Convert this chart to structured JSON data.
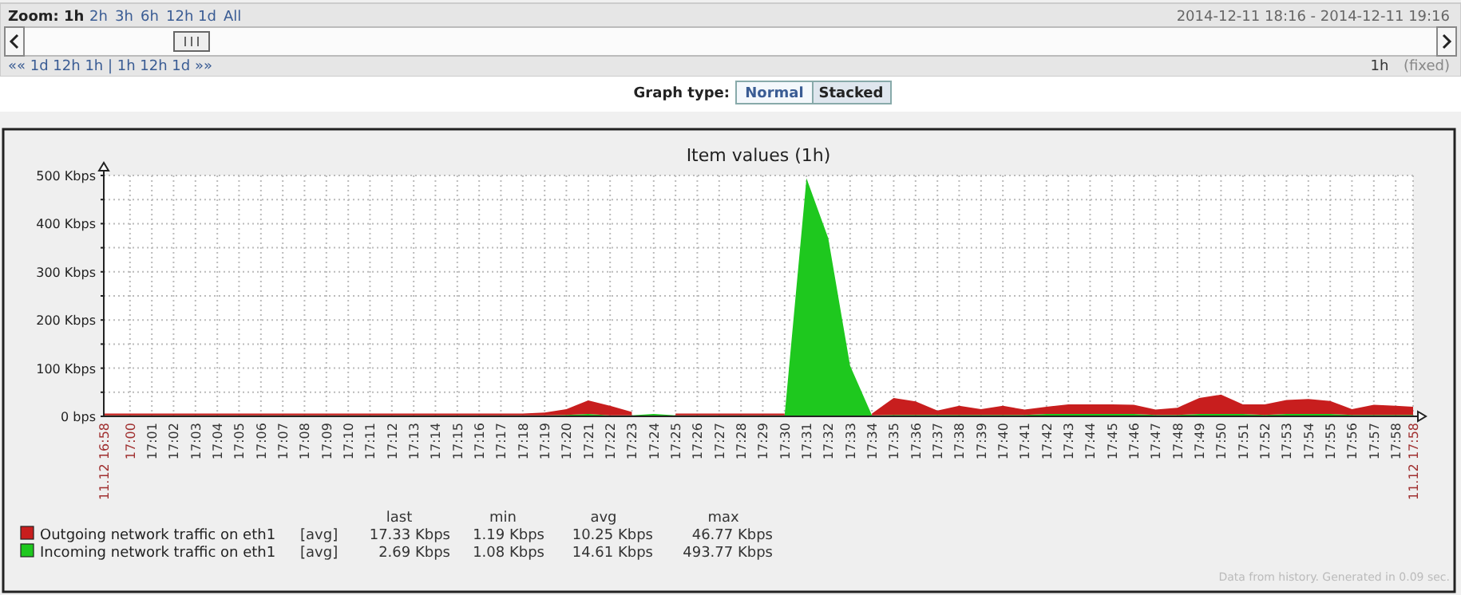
{
  "chart_data": {
    "type": "area",
    "title": "Item values (1h)",
    "stacked": true,
    "grid": true,
    "legend": "bottom",
    "xlim": [
      16.98,
      17.98
    ],
    "ylim": [
      0,
      500
    ],
    "yticks": [
      {
        "value": 0,
        "label": "0 bps"
      },
      {
        "value": 50,
        "label": null
      },
      {
        "value": 100,
        "label": "100 Kbps"
      },
      {
        "value": 150,
        "label": null
      },
      {
        "value": 200,
        "label": "200 Kbps"
      },
      {
        "value": 250,
        "label": null
      },
      {
        "value": 300,
        "label": "300 Kbps"
      },
      {
        "value": 350,
        "label": null
      },
      {
        "value": 400,
        "label": "400 Kbps"
      },
      {
        "value": 450,
        "label": null
      },
      {
        "value": 500,
        "label": "500 Kbps"
      }
    ],
    "xticks": [
      {
        "value": 16.98,
        "label": "11.12 16:58"
      },
      {
        "value": 17,
        "label": "17:00"
      },
      {
        "value": 17.0167,
        "label": "17:01"
      },
      {
        "value": 17.0333,
        "label": "17:02"
      },
      {
        "value": 17.05,
        "label": "17:03"
      },
      {
        "value": 17.0667,
        "label": "17:04"
      },
      {
        "value": 17.0833,
        "label": "17:05"
      },
      {
        "value": 17.1,
        "label": "17:06"
      },
      {
        "value": 17.1167,
        "label": "17:07"
      },
      {
        "value": 17.1333,
        "label": "17:08"
      },
      {
        "value": 17.15,
        "label": "17:09"
      },
      {
        "value": 17.1667,
        "label": "17:10"
      },
      {
        "value": 17.1833,
        "label": "17:11"
      },
      {
        "value": 17.2,
        "label": "17:12"
      },
      {
        "value": 17.2167,
        "label": "17:13"
      },
      {
        "value": 17.2333,
        "label": "17:14"
      },
      {
        "value": 17.25,
        "label": "17:15"
      },
      {
        "value": 17.2667,
        "label": "17:16"
      },
      {
        "value": 17.2833,
        "label": "17:17"
      },
      {
        "value": 17.3,
        "label": "17:18"
      },
      {
        "value": 17.3167,
        "label": "17:19"
      },
      {
        "value": 17.3333,
        "label": "17:20"
      },
      {
        "value": 17.35,
        "label": "17:21"
      },
      {
        "value": 17.3667,
        "label": "17:22"
      },
      {
        "value": 17.3833,
        "label": "17:23"
      },
      {
        "value": 17.4,
        "label": "17:24"
      },
      {
        "value": 17.4167,
        "label": "17:25"
      },
      {
        "value": 17.4333,
        "label": "17:26"
      },
      {
        "value": 17.45,
        "label": "17:27"
      },
      {
        "value": 17.4667,
        "label": "17:28"
      },
      {
        "value": 17.4833,
        "label": "17:29"
      },
      {
        "value": 17.5,
        "label": "17:30"
      },
      {
        "value": 17.5167,
        "label": "17:31"
      },
      {
        "value": 17.5333,
        "label": "17:32"
      },
      {
        "value": 17.55,
        "label": "17:33"
      },
      {
        "value": 17.5667,
        "label": "17:34"
      },
      {
        "value": 17.5833,
        "label": "17:35"
      },
      {
        "value": 17.6,
        "label": "17:36"
      },
      {
        "value": 17.6167,
        "label": "17:37"
      },
      {
        "value": 17.6333,
        "label": "17:38"
      },
      {
        "value": 17.65,
        "label": "17:39"
      },
      {
        "value": 17.6667,
        "label": "17:40"
      },
      {
        "value": 17.6833,
        "label": "17:41"
      },
      {
        "value": 17.7,
        "label": "17:42"
      },
      {
        "value": 17.7167,
        "label": "17:43"
      },
      {
        "value": 17.7333,
        "label": "17:44"
      },
      {
        "value": 17.75,
        "label": "17:45"
      },
      {
        "value": 17.7667,
        "label": "17:46"
      },
      {
        "value": 17.7833,
        "label": "17:47"
      },
      {
        "value": 17.8,
        "label": "17:48"
      },
      {
        "value": 17.8167,
        "label": "17:49"
      },
      {
        "value": 17.8333,
        "label": "17:50"
      },
      {
        "value": 17.85,
        "label": "17:51"
      },
      {
        "value": 17.8667,
        "label": "17:52"
      },
      {
        "value": 17.8833,
        "label": "17:53"
      },
      {
        "value": 17.9,
        "label": "17:54"
      },
      {
        "value": 17.9167,
        "label": "17:55"
      },
      {
        "value": 17.9333,
        "label": "17:56"
      },
      {
        "value": 17.95,
        "label": "17:57"
      },
      {
        "value": 17.9667,
        "label": "17:58"
      },
      {
        "value": 17.98,
        "label": "11.12 17:58"
      }
    ],
    "x": [
      16.98,
      17,
      17.0167,
      17.0333,
      17.05,
      17.0667,
      17.0833,
      17.1,
      17.1167,
      17.1333,
      17.15,
      17.1667,
      17.1833,
      17.2,
      17.2167,
      17.2333,
      17.25,
      17.2667,
      17.2833,
      17.3,
      17.3167,
      17.3333,
      17.35,
      17.3667,
      17.3833,
      17.4,
      17.4167,
      17.4333,
      17.45,
      17.4667,
      17.4833,
      17.5,
      17.5167,
      17.5333,
      17.55,
      17.5667,
      17.5833,
      17.6,
      17.6167,
      17.6333,
      17.65,
      17.6667,
      17.6833,
      17.7,
      17.7167,
      17.7333,
      17.75,
      17.7667,
      17.7833,
      17.8,
      17.8167,
      17.8333,
      17.85,
      17.8667,
      17.8833,
      17.9,
      17.9167,
      17.9333,
      17.95,
      17.9667,
      17.98
    ],
    "series": [
      {
        "name": "Incoming network traffic on eth1",
        "color": "#1ec81e",
        "values": [
          2,
          2,
          2,
          2,
          2,
          2,
          2,
          2,
          2,
          2,
          2,
          2,
          2,
          2,
          2,
          2,
          2,
          2,
          2,
          2,
          2,
          3,
          5,
          2,
          2,
          5,
          2,
          2,
          2,
          2,
          2,
          2,
          494,
          370,
          105,
          2,
          3,
          3,
          3,
          3,
          3,
          3,
          3,
          5,
          5,
          5,
          5,
          5,
          3,
          3,
          5,
          5,
          5,
          3,
          5,
          5,
          5,
          3,
          3,
          3,
          3
        ]
      },
      {
        "name": "Outgoing network traffic on eth1",
        "color": "#c81e1e",
        "values": [
          4,
          4,
          4,
          4,
          4,
          4,
          4,
          4,
          4,
          4,
          4,
          4,
          4,
          4,
          4,
          4,
          4,
          4,
          4,
          4,
          6,
          12,
          28,
          20,
          7,
          null,
          4,
          4,
          4,
          4,
          4,
          4,
          null,
          null,
          null,
          4,
          35,
          28,
          9,
          19,
          12,
          19,
          11,
          15,
          20,
          20,
          20,
          19,
          11,
          15,
          33,
          40,
          20,
          22,
          29,
          31,
          27,
          12,
          21,
          19,
          17
        ]
      }
    ],
    "annotations": [
      "Zoom:",
      "1h",
      "2h",
      "3h",
      "6h",
      "12h",
      "1d",
      "All",
      "2014-12-11 18:16  -  2014-12-11 19:16",
      "«« 1d 12h 1h | 1h 12h 1d »»",
      "1h",
      "(fixed)",
      "Graph type:",
      "Normal",
      "Stacked",
      "last",
      "min",
      "avg",
      "max",
      "[avg]",
      "17.33 Kbps",
      "1.19 Kbps",
      "10.25 Kbps",
      "46.77 Kbps",
      "[avg]",
      "2.69 Kbps",
      "1.08 Kbps",
      "14.61 Kbps",
      "493.77 Kbps",
      "Data from history. Generated in 0.09 sec."
    ]
  }
}
